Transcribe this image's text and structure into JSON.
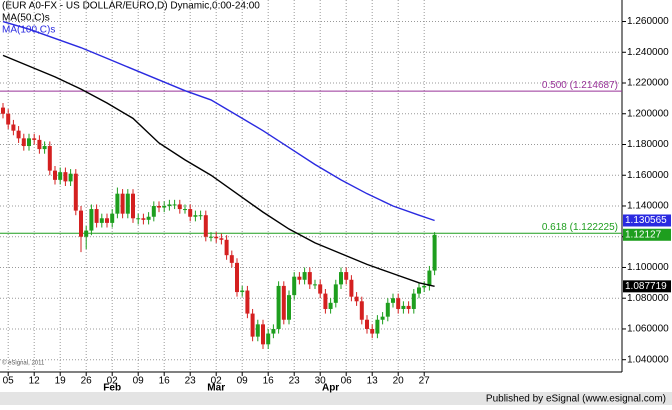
{
  "chart_data": {
    "type": "candlestick",
    "title": "(EUR A0-FX - US DOLLAR/EURO,D) Dynamic,0:00-24:00",
    "watermark": "© eSignal, 2011",
    "footer": "Published by eSignal (www.esignal.com)",
    "up_color": "#1e9e1e",
    "down_color": "#d42020",
    "grid": true,
    "ylim": [
      1.032,
      1.274
    ],
    "yticks": [
      {
        "value": 1.04,
        "label": "1.040000"
      },
      {
        "value": 1.06,
        "label": "1.060000"
      },
      {
        "value": 1.08,
        "label": "1.080000"
      },
      {
        "value": 1.1,
        "label": "1.100000"
      },
      {
        "value": 1.12,
        "label": "1.120000"
      },
      {
        "value": 1.14,
        "label": "1.140000"
      },
      {
        "value": 1.16,
        "label": "1.160000"
      },
      {
        "value": 1.18,
        "label": "1.180000"
      },
      {
        "value": 1.2,
        "label": "1.200000"
      },
      {
        "value": 1.22,
        "label": "1.220000"
      },
      {
        "value": 1.24,
        "label": "1.240000"
      },
      {
        "value": 1.26,
        "label": "1.260000"
      }
    ],
    "categories": [
      null,
      "05",
      null,
      null,
      null,
      null,
      "12",
      null,
      null,
      null,
      null,
      "19",
      null,
      null,
      null,
      null,
      "26",
      null,
      null,
      null,
      null,
      "02",
      null,
      null,
      null,
      null,
      "09",
      null,
      null,
      null,
      null,
      "16",
      null,
      null,
      null,
      null,
      "23",
      null,
      null,
      null,
      null,
      "02",
      null,
      null,
      null,
      null,
      "09",
      null,
      null,
      null,
      null,
      "16",
      null,
      null,
      null,
      null,
      "23",
      null,
      null,
      null,
      null,
      "30",
      null,
      null,
      null,
      null,
      "06",
      null,
      null,
      null,
      null,
      "13",
      null,
      null,
      null,
      null,
      "20",
      null,
      null,
      null,
      null,
      "27",
      null,
      null
    ],
    "month_labels": [
      {
        "value": 21,
        "label": "Feb"
      },
      {
        "value": 41,
        "label": "Mar"
      },
      {
        "value": 63,
        "label": "Apr"
      }
    ],
    "open": [
      1.204,
      1.2,
      1.193,
      1.189,
      1.184,
      1.179,
      1.184,
      1.183,
      1.177,
      1.179,
      1.163,
      1.157,
      1.162,
      1.156,
      1.161,
      1.137,
      1.12,
      1.124,
      1.138,
      1.129,
      1.132,
      1.129,
      1.135,
      1.148,
      1.135,
      1.148,
      1.132,
      1.132,
      1.131,
      1.133,
      1.14,
      1.139,
      1.14,
      1.141,
      1.141,
      1.138,
      1.138,
      1.133,
      1.134,
      1.134,
      1.12,
      1.12,
      1.119,
      1.118,
      1.108,
      1.103,
      1.084,
      1.085,
      1.07,
      1.055,
      1.063,
      1.05,
      1.057,
      1.06,
      1.088,
      1.066,
      1.082,
      1.094,
      1.092,
      1.097,
      1.089,
      1.089,
      1.083,
      1.073,
      1.077,
      1.089,
      1.097,
      1.092,
      1.081,
      1.078,
      1.066,
      1.06,
      1.057,
      1.066,
      1.068,
      1.077,
      1.08,
      1.073,
      1.075,
      1.073,
      1.083,
      1.087,
      1.088,
      1.098
    ],
    "high": [
      1.207,
      1.203,
      1.196,
      1.192,
      1.187,
      1.187,
      1.187,
      1.186,
      1.182,
      1.182,
      1.166,
      1.165,
      1.165,
      1.164,
      1.164,
      1.14,
      1.127,
      1.141,
      1.141,
      1.135,
      1.135,
      1.138,
      1.152,
      1.151,
      1.151,
      1.151,
      1.135,
      1.135,
      1.136,
      1.143,
      1.143,
      1.143,
      1.144,
      1.144,
      1.144,
      1.141,
      1.141,
      1.137,
      1.137,
      1.137,
      1.123,
      1.123,
      1.122,
      1.121,
      1.111,
      1.106,
      1.088,
      1.088,
      1.073,
      1.066,
      1.066,
      1.06,
      1.063,
      1.091,
      1.091,
      1.085,
      1.097,
      1.097,
      1.1,
      1.1,
      1.092,
      1.092,
      1.086,
      1.08,
      1.092,
      1.1,
      1.1,
      1.095,
      1.084,
      1.081,
      1.069,
      1.063,
      1.069,
      1.071,
      1.08,
      1.083,
      1.083,
      1.078,
      1.078,
      1.086,
      1.09,
      1.091,
      1.101,
      1.123
    ],
    "low": [
      1.197,
      1.19,
      1.186,
      1.181,
      1.176,
      1.176,
      1.18,
      1.174,
      1.174,
      1.16,
      1.154,
      1.154,
      1.153,
      1.153,
      1.134,
      1.11,
      1.112,
      1.121,
      1.126,
      1.126,
      1.126,
      1.126,
      1.132,
      1.132,
      1.132,
      1.129,
      1.128,
      1.128,
      1.128,
      1.13,
      1.136,
      1.136,
      1.137,
      1.138,
      1.135,
      1.135,
      1.13,
      1.13,
      1.131,
      1.117,
      1.117,
      1.116,
      1.115,
      1.105,
      1.1,
      1.081,
      1.081,
      1.067,
      1.052,
      1.052,
      1.047,
      1.047,
      1.054,
      1.057,
      1.063,
      1.063,
      1.079,
      1.089,
      1.089,
      1.086,
      1.086,
      1.08,
      1.07,
      1.07,
      1.074,
      1.086,
      1.089,
      1.078,
      1.075,
      1.063,
      1.057,
      1.054,
      1.054,
      1.063,
      1.065,
      1.074,
      1.07,
      1.07,
      1.07,
      1.07,
      1.08,
      1.084,
      1.085,
      1.095
    ],
    "close": [
      1.2,
      1.193,
      1.189,
      1.184,
      1.179,
      1.184,
      1.183,
      1.177,
      1.179,
      1.163,
      1.157,
      1.162,
      1.156,
      1.161,
      1.137,
      1.12,
      1.124,
      1.138,
      1.129,
      1.132,
      1.129,
      1.135,
      1.148,
      1.135,
      1.148,
      1.132,
      1.132,
      1.131,
      1.133,
      1.14,
      1.139,
      1.14,
      1.141,
      1.141,
      1.138,
      1.138,
      1.133,
      1.134,
      1.134,
      1.12,
      1.12,
      1.119,
      1.118,
      1.108,
      1.103,
      1.084,
      1.085,
      1.07,
      1.055,
      1.063,
      1.05,
      1.057,
      1.06,
      1.088,
      1.066,
      1.082,
      1.094,
      1.092,
      1.097,
      1.089,
      1.089,
      1.083,
      1.073,
      1.077,
      1.089,
      1.097,
      1.092,
      1.081,
      1.078,
      1.066,
      1.06,
      1.057,
      1.066,
      1.068,
      1.077,
      1.08,
      1.073,
      1.075,
      1.073,
      1.083,
      1.087,
      1.088,
      1.098,
      1.12127
    ],
    "series": [
      {
        "name": "MA(50,C)s",
        "color": "#000000",
        "x": [
          0,
          5,
          10,
          15,
          20,
          25,
          30,
          35,
          40,
          45,
          50,
          55,
          60,
          65,
          70,
          75,
          80,
          83
        ],
        "values": [
          1.238,
          1.231,
          1.224,
          1.216,
          1.207,
          1.197,
          1.181,
          1.17,
          1.16,
          1.148,
          1.136,
          1.125,
          1.116,
          1.109,
          1.102,
          1.096,
          1.09,
          1.087719
        ]
      },
      {
        "name": "MA(100,C)s",
        "color": "#2a2ae0",
        "x": [
          0,
          5,
          10,
          15,
          20,
          25,
          30,
          35,
          40,
          45,
          50,
          55,
          60,
          65,
          70,
          75,
          80,
          83
        ],
        "values": [
          1.26,
          1.255,
          1.249,
          1.243,
          1.236,
          1.229,
          1.222,
          1.215,
          1.209,
          1.199,
          1.189,
          1.178,
          1.167,
          1.157,
          1.148,
          1.14,
          1.134,
          1.130565
        ]
      }
    ],
    "levels": [
      {
        "label": "0.500 (1.214687)",
        "value": 1.214687,
        "color": "#993399"
      },
      {
        "label": "0.618 (1.122225)",
        "value": 1.122225,
        "color": "#1e9e1e"
      }
    ]
  }
}
